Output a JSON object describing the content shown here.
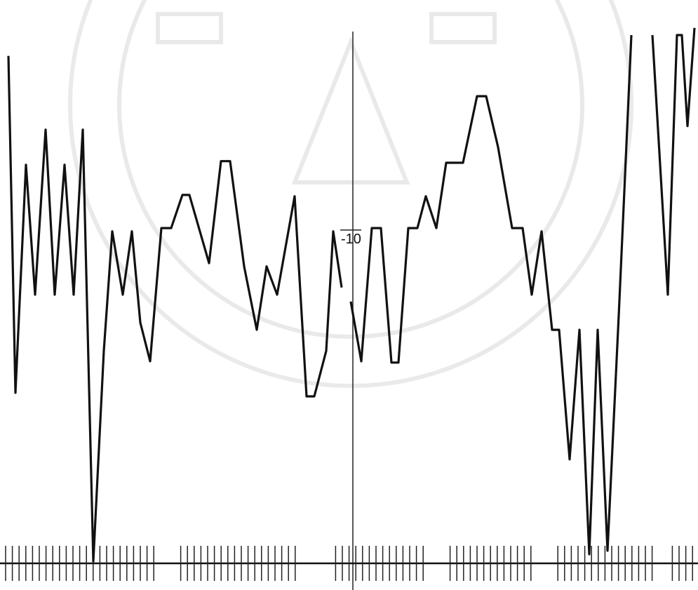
{
  "chart_data": {
    "type": "line",
    "xlim": [
      0,
      99.5
    ],
    "ylim": [
      -20.82,
      -2.66
    ],
    "yticks": [
      -10
    ],
    "color": "#111111",
    "x": [
      1.2,
      2.2,
      3.7,
      5.0,
      6.5,
      7.8,
      9.2,
      10.5,
      11.8,
      13.3,
      14.8,
      16.0,
      17.5,
      18.8,
      20.0,
      21.4,
      23.0,
      24.4,
      26.0,
      27.0,
      29.8,
      31.5,
      32.8,
      34.8,
      36.6,
      38.0,
      39.5,
      42.0,
      43.7,
      44.8,
      46.5,
      47.5,
      48.7,
      null,
      50.0,
      51.5,
      53.0,
      54.3,
      55.8,
      56.8,
      58.2,
      59.5,
      60.7,
      62.2,
      63.6,
      66.0,
      68.0,
      69.3,
      71.0,
      73.0,
      74.5,
      75.8,
      77.2,
      78.7,
      79.7,
      81.2,
      82.6,
      84.0,
      85.2,
      86.6,
      88.2,
      90.0,
      null,
      93.0,
      95.2,
      96.5,
      97.2,
      98.0,
      99.0
    ],
    "values": [
      -4.38,
      -14.75,
      -7.73,
      -11.73,
      -6.65,
      -11.73,
      -7.73,
      -11.73,
      -6.65,
      -19.94,
      -13.46,
      -9.78,
      -11.73,
      -9.78,
      -12.59,
      -13.78,
      -9.68,
      -9.68,
      -8.66,
      -8.66,
      -10.76,
      -7.62,
      -7.62,
      -10.86,
      -12.81,
      -10.86,
      -11.73,
      -8.7,
      -14.86,
      -14.86,
      -13.46,
      -9.78,
      -11.51,
      null,
      -11.94,
      -13.78,
      -9.68,
      -9.68,
      -13.82,
      -13.82,
      -9.68,
      -9.68,
      -8.7,
      -9.68,
      -7.67,
      -7.67,
      -5.62,
      -5.62,
      -7.19,
      -9.68,
      -9.68,
      -11.73,
      -9.78,
      -12.81,
      -12.81,
      -16.8,
      -12.81,
      -19.72,
      -12.81,
      -19.61,
      -12.38,
      -3.74,
      null,
      -3.74,
      -11.73,
      -3.74,
      -3.74,
      -6.54,
      -3.52
    ]
  }
}
